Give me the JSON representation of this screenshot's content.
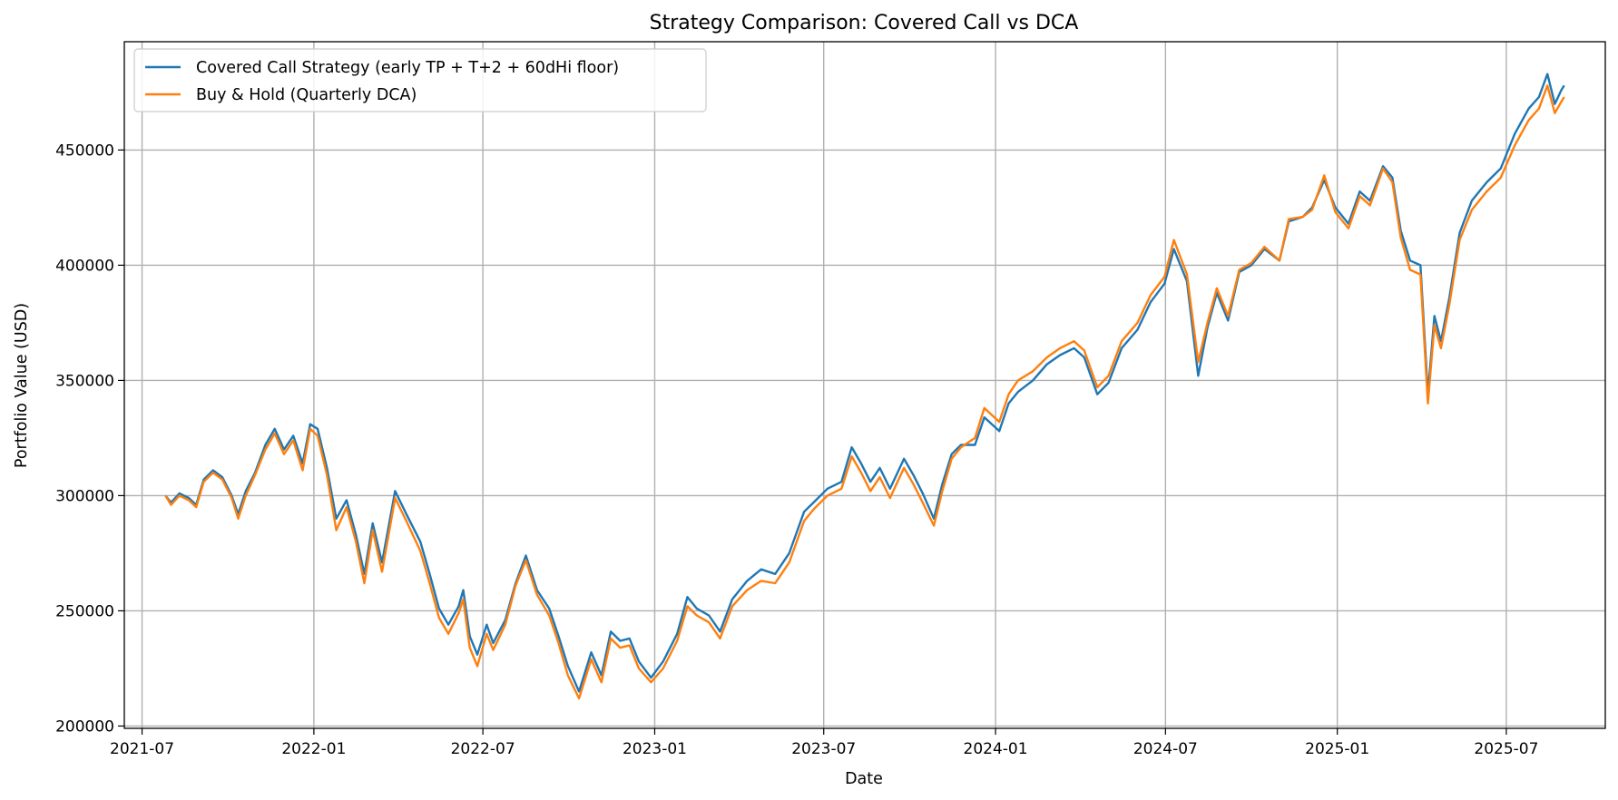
{
  "chart_data": {
    "type": "line",
    "title": "Strategy Comparison: Covered Call vs DCA",
    "xlabel": "Date",
    "ylabel": "Portfolio Value (USD)",
    "grid": true,
    "legend_position": "top-left",
    "xlim": [
      "2021-06-12",
      "2025-10-15"
    ],
    "ylim": [
      199000,
      497000
    ],
    "x_ticks": [
      "2021-07",
      "2022-01",
      "2022-07",
      "2023-01",
      "2023-07",
      "2024-01",
      "2024-07",
      "2025-01",
      "2025-07"
    ],
    "y_ticks": [
      200000,
      250000,
      300000,
      350000,
      400000,
      450000
    ],
    "series": [
      {
        "name": "Covered Call Strategy (early TP + T+2 + 60dHi floor)",
        "color": "#1f77b4",
        "points": [
          [
            "2021-07-26",
            300000
          ],
          [
            "2021-08-01",
            297000
          ],
          [
            "2021-08-10",
            301000
          ],
          [
            "2021-08-20",
            299000
          ],
          [
            "2021-08-28",
            296000
          ],
          [
            "2021-09-05",
            307000
          ],
          [
            "2021-09-15",
            311000
          ],
          [
            "2021-09-25",
            308000
          ],
          [
            "2021-10-05",
            300000
          ],
          [
            "2021-10-12",
            292000
          ],
          [
            "2021-10-20",
            302000
          ],
          [
            "2021-10-30",
            310000
          ],
          [
            "2021-11-10",
            322000
          ],
          [
            "2021-11-20",
            329000
          ],
          [
            "2021-11-30",
            320000
          ],
          [
            "2021-12-10",
            326000
          ],
          [
            "2021-12-20",
            314000
          ],
          [
            "2021-12-28",
            331000
          ],
          [
            "2022-01-05",
            329000
          ],
          [
            "2022-01-15",
            312000
          ],
          [
            "2022-01-25",
            290000
          ],
          [
            "2022-02-05",
            298000
          ],
          [
            "2022-02-15",
            283000
          ],
          [
            "2022-02-24",
            266000
          ],
          [
            "2022-03-05",
            288000
          ],
          [
            "2022-03-15",
            271000
          ],
          [
            "2022-03-29",
            302000
          ],
          [
            "2022-04-10",
            292000
          ],
          [
            "2022-04-25",
            280000
          ],
          [
            "2022-05-05",
            266000
          ],
          [
            "2022-05-15",
            251000
          ],
          [
            "2022-05-25",
            244000
          ],
          [
            "2022-06-05",
            252000
          ],
          [
            "2022-06-10",
            259000
          ],
          [
            "2022-06-17",
            239000
          ],
          [
            "2022-06-25",
            231000
          ],
          [
            "2022-07-05",
            244000
          ],
          [
            "2022-07-12",
            236000
          ],
          [
            "2022-07-25",
            246000
          ],
          [
            "2022-08-05",
            262000
          ],
          [
            "2022-08-16",
            274000
          ],
          [
            "2022-08-28",
            259000
          ],
          [
            "2022-09-10",
            251000
          ],
          [
            "2022-09-20",
            239000
          ],
          [
            "2022-09-30",
            226000
          ],
          [
            "2022-10-12",
            215000
          ],
          [
            "2022-10-25",
            232000
          ],
          [
            "2022-11-05",
            222000
          ],
          [
            "2022-11-15",
            241000
          ],
          [
            "2022-11-25",
            237000
          ],
          [
            "2022-12-05",
            238000
          ],
          [
            "2022-12-15",
            228000
          ],
          [
            "2022-12-28",
            221000
          ],
          [
            "2023-01-10",
            228000
          ],
          [
            "2023-01-25",
            240000
          ],
          [
            "2023-02-05",
            256000
          ],
          [
            "2023-02-15",
            251000
          ],
          [
            "2023-02-28",
            248000
          ],
          [
            "2023-03-12",
            241000
          ],
          [
            "2023-03-25",
            255000
          ],
          [
            "2023-04-10",
            263000
          ],
          [
            "2023-04-25",
            268000
          ],
          [
            "2023-05-10",
            266000
          ],
          [
            "2023-05-25",
            275000
          ],
          [
            "2023-06-10",
            293000
          ],
          [
            "2023-06-20",
            297000
          ],
          [
            "2023-07-05",
            303000
          ],
          [
            "2023-07-20",
            306000
          ],
          [
            "2023-07-31",
            321000
          ],
          [
            "2023-08-10",
            314000
          ],
          [
            "2023-08-20",
            306000
          ],
          [
            "2023-08-30",
            312000
          ],
          [
            "2023-09-10",
            303000
          ],
          [
            "2023-09-25",
            316000
          ],
          [
            "2023-10-05",
            309000
          ],
          [
            "2023-10-15",
            301000
          ],
          [
            "2023-10-27",
            290000
          ],
          [
            "2023-11-05",
            305000
          ],
          [
            "2023-11-15",
            318000
          ],
          [
            "2023-11-25",
            322000
          ],
          [
            "2023-12-10",
            322000
          ],
          [
            "2023-12-20",
            334000
          ],
          [
            "2024-01-05",
            328000
          ],
          [
            "2024-01-15",
            340000
          ],
          [
            "2024-01-25",
            345000
          ],
          [
            "2024-02-10",
            350000
          ],
          [
            "2024-02-25",
            357000
          ],
          [
            "2024-03-10",
            361000
          ],
          [
            "2024-03-25",
            364000
          ],
          [
            "2024-04-05",
            360000
          ],
          [
            "2024-04-19",
            344000
          ],
          [
            "2024-05-01",
            349000
          ],
          [
            "2024-05-15",
            364000
          ],
          [
            "2024-06-01",
            372000
          ],
          [
            "2024-06-15",
            384000
          ],
          [
            "2024-06-30",
            392000
          ],
          [
            "2024-07-10",
            407000
          ],
          [
            "2024-07-24",
            393000
          ],
          [
            "2024-08-05",
            352000
          ],
          [
            "2024-08-15",
            373000
          ],
          [
            "2024-08-25",
            388000
          ],
          [
            "2024-09-06",
            376000
          ],
          [
            "2024-09-18",
            397000
          ],
          [
            "2024-10-01",
            400000
          ],
          [
            "2024-10-15",
            407000
          ],
          [
            "2024-10-31",
            402000
          ],
          [
            "2024-11-10",
            419000
          ],
          [
            "2024-11-25",
            421000
          ],
          [
            "2024-12-05",
            425000
          ],
          [
            "2024-12-18",
            437000
          ],
          [
            "2024-12-30",
            425000
          ],
          [
            "2025-01-13",
            418000
          ],
          [
            "2025-01-25",
            432000
          ],
          [
            "2025-02-05",
            428000
          ],
          [
            "2025-02-19",
            443000
          ],
          [
            "2025-03-01",
            438000
          ],
          [
            "2025-03-10",
            415000
          ],
          [
            "2025-03-20",
            402000
          ],
          [
            "2025-03-31",
            400000
          ],
          [
            "2025-04-08",
            344000
          ],
          [
            "2025-04-15",
            378000
          ],
          [
            "2025-04-22",
            367000
          ],
          [
            "2025-05-01",
            386000
          ],
          [
            "2025-05-12",
            414000
          ],
          [
            "2025-05-25",
            428000
          ],
          [
            "2025-06-10",
            436000
          ],
          [
            "2025-06-25",
            442000
          ],
          [
            "2025-07-10",
            457000
          ],
          [
            "2025-07-25",
            468000
          ],
          [
            "2025-08-05",
            473000
          ],
          [
            "2025-08-14",
            483000
          ],
          [
            "2025-08-22",
            470000
          ],
          [
            "2025-08-29",
            476000
          ],
          [
            "2025-09-01",
            478000
          ]
        ]
      },
      {
        "name": "Buy & Hold (Quarterly DCA)",
        "color": "#ff7f0e",
        "points": [
          [
            "2021-07-26",
            300000
          ],
          [
            "2021-08-01",
            296000
          ],
          [
            "2021-08-10",
            300000
          ],
          [
            "2021-08-20",
            298000
          ],
          [
            "2021-08-28",
            295000
          ],
          [
            "2021-09-05",
            306000
          ],
          [
            "2021-09-15",
            310000
          ],
          [
            "2021-09-25",
            307000
          ],
          [
            "2021-10-05",
            299000
          ],
          [
            "2021-10-12",
            290000
          ],
          [
            "2021-10-20",
            300000
          ],
          [
            "2021-10-30",
            309000
          ],
          [
            "2021-11-10",
            320000
          ],
          [
            "2021-11-20",
            327000
          ],
          [
            "2021-11-30",
            318000
          ],
          [
            "2021-12-10",
            324000
          ],
          [
            "2021-12-20",
            311000
          ],
          [
            "2021-12-28",
            329000
          ],
          [
            "2022-01-05",
            326000
          ],
          [
            "2022-01-15",
            309000
          ],
          [
            "2022-01-25",
            285000
          ],
          [
            "2022-02-05",
            295000
          ],
          [
            "2022-02-15",
            280000
          ],
          [
            "2022-02-24",
            262000
          ],
          [
            "2022-03-05",
            285000
          ],
          [
            "2022-03-15",
            267000
          ],
          [
            "2022-03-29",
            299000
          ],
          [
            "2022-04-10",
            289000
          ],
          [
            "2022-04-25",
            276000
          ],
          [
            "2022-05-05",
            262000
          ],
          [
            "2022-05-15",
            247000
          ],
          [
            "2022-05-25",
            240000
          ],
          [
            "2022-06-05",
            249000
          ],
          [
            "2022-06-10",
            255000
          ],
          [
            "2022-06-17",
            234000
          ],
          [
            "2022-06-25",
            226000
          ],
          [
            "2022-07-05",
            240000
          ],
          [
            "2022-07-12",
            233000
          ],
          [
            "2022-07-25",
            244000
          ],
          [
            "2022-08-05",
            261000
          ],
          [
            "2022-08-16",
            272000
          ],
          [
            "2022-08-28",
            257000
          ],
          [
            "2022-09-10",
            248000
          ],
          [
            "2022-09-20",
            236000
          ],
          [
            "2022-09-30",
            222000
          ],
          [
            "2022-10-12",
            212000
          ],
          [
            "2022-10-25",
            229000
          ],
          [
            "2022-11-05",
            219000
          ],
          [
            "2022-11-15",
            238000
          ],
          [
            "2022-11-25",
            234000
          ],
          [
            "2022-12-05",
            235000
          ],
          [
            "2022-12-15",
            225000
          ],
          [
            "2022-12-28",
            219000
          ],
          [
            "2023-01-10",
            225000
          ],
          [
            "2023-01-25",
            237000
          ],
          [
            "2023-02-05",
            252000
          ],
          [
            "2023-02-15",
            248000
          ],
          [
            "2023-02-28",
            245000
          ],
          [
            "2023-03-12",
            238000
          ],
          [
            "2023-03-25",
            252000
          ],
          [
            "2023-04-10",
            259000
          ],
          [
            "2023-04-25",
            263000
          ],
          [
            "2023-05-10",
            262000
          ],
          [
            "2023-05-25",
            271000
          ],
          [
            "2023-06-10",
            289000
          ],
          [
            "2023-06-20",
            294000
          ],
          [
            "2023-07-05",
            300000
          ],
          [
            "2023-07-20",
            303000
          ],
          [
            "2023-07-31",
            317000
          ],
          [
            "2023-08-10",
            310000
          ],
          [
            "2023-08-20",
            302000
          ],
          [
            "2023-08-30",
            308000
          ],
          [
            "2023-09-10",
            299000
          ],
          [
            "2023-09-25",
            312000
          ],
          [
            "2023-10-05",
            305000
          ],
          [
            "2023-10-15",
            297000
          ],
          [
            "2023-10-27",
            287000
          ],
          [
            "2023-11-05",
            302000
          ],
          [
            "2023-11-15",
            316000
          ],
          [
            "2023-11-25",
            321000
          ],
          [
            "2023-12-10",
            325000
          ],
          [
            "2023-12-20",
            338000
          ],
          [
            "2024-01-05",
            332000
          ],
          [
            "2024-01-15",
            344000
          ],
          [
            "2024-01-25",
            350000
          ],
          [
            "2024-02-10",
            354000
          ],
          [
            "2024-02-25",
            360000
          ],
          [
            "2024-03-10",
            364000
          ],
          [
            "2024-03-25",
            367000
          ],
          [
            "2024-04-05",
            363000
          ],
          [
            "2024-04-19",
            347000
          ],
          [
            "2024-05-01",
            352000
          ],
          [
            "2024-05-15",
            367000
          ],
          [
            "2024-06-01",
            375000
          ],
          [
            "2024-06-15",
            387000
          ],
          [
            "2024-06-30",
            395000
          ],
          [
            "2024-07-10",
            411000
          ],
          [
            "2024-07-24",
            396000
          ],
          [
            "2024-08-05",
            358000
          ],
          [
            "2024-08-15",
            375000
          ],
          [
            "2024-08-25",
            390000
          ],
          [
            "2024-09-06",
            378000
          ],
          [
            "2024-09-18",
            398000
          ],
          [
            "2024-10-01",
            401000
          ],
          [
            "2024-10-15",
            408000
          ],
          [
            "2024-10-31",
            402000
          ],
          [
            "2024-11-10",
            420000
          ],
          [
            "2024-11-25",
            421000
          ],
          [
            "2024-12-05",
            424000
          ],
          [
            "2024-12-18",
            439000
          ],
          [
            "2024-12-30",
            423000
          ],
          [
            "2025-01-13",
            416000
          ],
          [
            "2025-01-25",
            430000
          ],
          [
            "2025-02-05",
            426000
          ],
          [
            "2025-02-19",
            442000
          ],
          [
            "2025-03-01",
            436000
          ],
          [
            "2025-03-10",
            412000
          ],
          [
            "2025-03-20",
            398000
          ],
          [
            "2025-03-31",
            396000
          ],
          [
            "2025-04-08",
            340000
          ],
          [
            "2025-04-15",
            374000
          ],
          [
            "2025-04-22",
            364000
          ],
          [
            "2025-05-01",
            383000
          ],
          [
            "2025-05-12",
            411000
          ],
          [
            "2025-05-25",
            424000
          ],
          [
            "2025-06-10",
            432000
          ],
          [
            "2025-06-25",
            438000
          ],
          [
            "2025-07-10",
            452000
          ],
          [
            "2025-07-25",
            463000
          ],
          [
            "2025-08-05",
            468000
          ],
          [
            "2025-08-14",
            478000
          ],
          [
            "2025-08-22",
            466000
          ],
          [
            "2025-08-29",
            471000
          ],
          [
            "2025-09-01",
            473000
          ]
        ]
      }
    ]
  }
}
